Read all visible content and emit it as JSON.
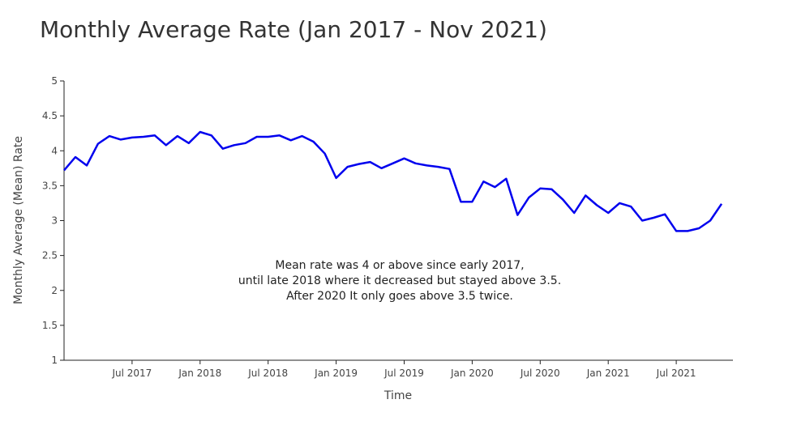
{
  "chart_data": {
    "type": "line",
    "title": "Monthly Average Rate (Jan 2017 - Nov 2021)",
    "xlabel": "Time",
    "ylabel": "Monthly Average (Mean) Rate",
    "ylim": [
      1,
      5
    ],
    "xlim": [
      "2017-01",
      "2021-12"
    ],
    "yticks": [
      "1",
      "1.5",
      "2",
      "2.5",
      "3",
      "3.5",
      "4",
      "4.5",
      "5"
    ],
    "xticks": [
      {
        "date": "2017-07",
        "label": "Jul 2017"
      },
      {
        "date": "2018-01",
        "label": "Jan 2018"
      },
      {
        "date": "2018-07",
        "label": "Jul 2018"
      },
      {
        "date": "2019-01",
        "label": "Jan 2019"
      },
      {
        "date": "2019-07",
        "label": "Jul 2019"
      },
      {
        "date": "2020-01",
        "label": "Jan 2020"
      },
      {
        "date": "2020-07",
        "label": "Jul 2020"
      },
      {
        "date": "2021-01",
        "label": "Jan 2021"
      },
      {
        "date": "2021-07",
        "label": "Jul 2021"
      }
    ],
    "grid": false,
    "color": "#0000ee",
    "series": [
      {
        "x": [
          "2017-01",
          "2017-02",
          "2017-03",
          "2017-04",
          "2017-05",
          "2017-06",
          "2017-07",
          "2017-08",
          "2017-09",
          "2017-10",
          "2017-11",
          "2017-12",
          "2018-01",
          "2018-02",
          "2018-03",
          "2018-04",
          "2018-05",
          "2018-06",
          "2018-07",
          "2018-08",
          "2018-09",
          "2018-10",
          "2018-11",
          "2018-12",
          "2019-01",
          "2019-02",
          "2019-03",
          "2019-04",
          "2019-05",
          "2019-06",
          "2019-07",
          "2019-08",
          "2019-09",
          "2019-10",
          "2019-11",
          "2019-12",
          "2020-01",
          "2020-02",
          "2020-03",
          "2020-04",
          "2020-05",
          "2020-06",
          "2020-07",
          "2020-08",
          "2020-09",
          "2020-10",
          "2020-11",
          "2020-12",
          "2021-01",
          "2021-02",
          "2021-03",
          "2021-04",
          "2021-05",
          "2021-06",
          "2021-07",
          "2021-08",
          "2021-09",
          "2021-10",
          "2021-11"
        ],
        "values": [
          3.72,
          3.91,
          3.79,
          4.1,
          4.21,
          4.16,
          4.19,
          4.2,
          4.22,
          4.08,
          4.21,
          4.11,
          4.27,
          4.22,
          4.03,
          4.08,
          4.11,
          4.2,
          4.2,
          4.22,
          4.15,
          4.21,
          4.13,
          3.96,
          3.61,
          3.77,
          3.81,
          3.84,
          3.75,
          3.82,
          3.89,
          3.82,
          3.79,
          3.77,
          3.74,
          3.27,
          3.27,
          3.56,
          3.48,
          3.6,
          3.08,
          3.33,
          3.46,
          3.45,
          3.3,
          3.11,
          3.36,
          3.22,
          3.11,
          3.25,
          3.2,
          3.0,
          3.04,
          3.09,
          2.85,
          2.85,
          2.89,
          3.0,
          3.24
        ]
      }
    ],
    "annotation": {
      "lines": [
        "Mean rate was 4 or above since early 2017,",
        "until late 2018 where it decreased but stayed above 3.5.",
        "After 2020 It only goes above 3.5 twice."
      ]
    }
  }
}
